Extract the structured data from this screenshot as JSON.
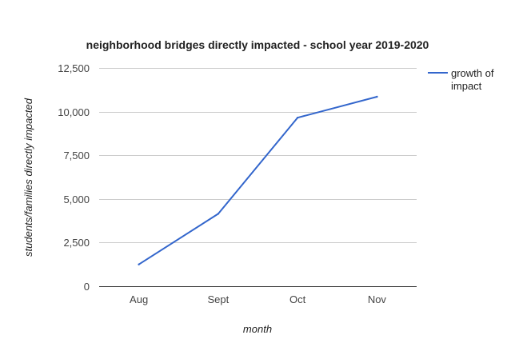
{
  "chart_data": {
    "type": "line",
    "title": "neighborhood bridges directly impacted - school year 2019-2020",
    "xlabel": "month",
    "ylabel": "students/families directly impacted",
    "categories": [
      "Aug",
      "Sept",
      "Oct",
      "Nov"
    ],
    "series": [
      {
        "name": "growth of impact",
        "values": [
          1250,
          4150,
          9650,
          10850
        ],
        "color": "#3366cc"
      }
    ],
    "ylim": [
      0,
      12500
    ],
    "yticks": [
      0,
      2500,
      5000,
      7500,
      10000,
      12500
    ],
    "ytick_labels": [
      "0",
      "2,500",
      "5,000",
      "7,500",
      "10,000",
      "12,500"
    ],
    "grid": true,
    "legend_position": "right"
  }
}
